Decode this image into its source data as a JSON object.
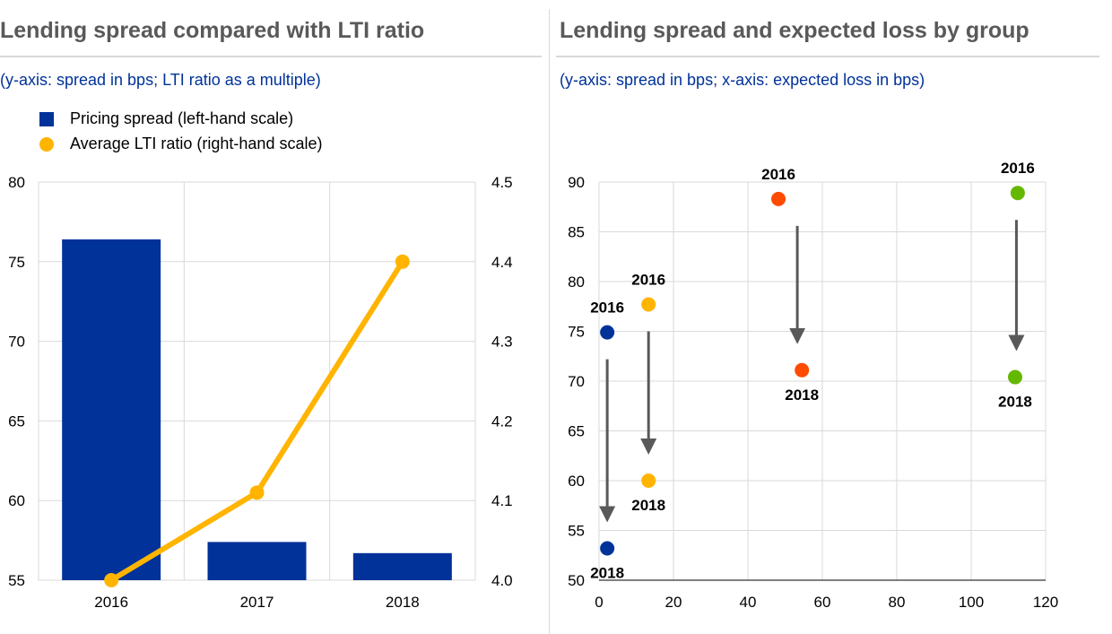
{
  "colors": {
    "blue": "#003299",
    "yellow": "#FFB400",
    "orange": "#FF4B00",
    "green": "#65B800",
    "darkblue": "#003299",
    "arrow": "#595959"
  },
  "chart_data": [
    {
      "type": "bar+line",
      "title": "Lending spread compared with LTI ratio",
      "subtitle": "(y-axis: spread in bps; LTI ratio as a multiple)",
      "categories": [
        "2016",
        "2017",
        "2018"
      ],
      "series": [
        {
          "name": "Pricing spread (left-hand scale)",
          "type": "bar",
          "axis": "left",
          "values": [
            76.4,
            57.4,
            56.7
          ]
        },
        {
          "name": "Average LTI ratio (right-hand scale)",
          "type": "line",
          "axis": "right",
          "values": [
            4.0,
            4.11,
            4.4
          ]
        }
      ],
      "ylim": [
        55,
        80
      ],
      "yticks": [
        "55",
        "60",
        "65",
        "70",
        "75",
        "80"
      ],
      "y2lim": [
        4.0,
        4.5
      ],
      "y2ticks": [
        "4.0",
        "4.1",
        "4.2",
        "4.3",
        "4.4",
        "4.5"
      ],
      "grid": true
    },
    {
      "type": "scatter",
      "title": "Lending spread and expected loss by group",
      "subtitle": "(y-axis: spread in bps; x-axis: expected loss in bps)",
      "xlim": [
        0,
        120
      ],
      "xticks": [
        "0",
        "20",
        "40",
        "60",
        "80",
        "100",
        "120"
      ],
      "ylim": [
        50,
        90
      ],
      "yticks": [
        "50",
        "55",
        "60",
        "65",
        "70",
        "75",
        "80",
        "85",
        "90"
      ],
      "groups": [
        {
          "color": "blue",
          "points": [
            {
              "label": "2016",
              "x": 2.2,
              "y": 74.9
            },
            {
              "label": "2018",
              "x": 2.2,
              "y": 53.2
            }
          ]
        },
        {
          "color": "yellow",
          "points": [
            {
              "label": "2016",
              "x": 13.3,
              "y": 77.7
            },
            {
              "label": "2018",
              "x": 13.3,
              "y": 60.0
            }
          ]
        },
        {
          "color": "orange",
          "points": [
            {
              "label": "2016",
              "x": 48.2,
              "y": 88.3
            },
            {
              "label": "2018",
              "x": 54.5,
              "y": 71.1
            }
          ]
        },
        {
          "color": "green",
          "points": [
            {
              "label": "2016",
              "x": 112.5,
              "y": 88.9
            },
            {
              "label": "2018",
              "x": 111.8,
              "y": 70.4
            }
          ]
        }
      ],
      "grid": true
    }
  ]
}
